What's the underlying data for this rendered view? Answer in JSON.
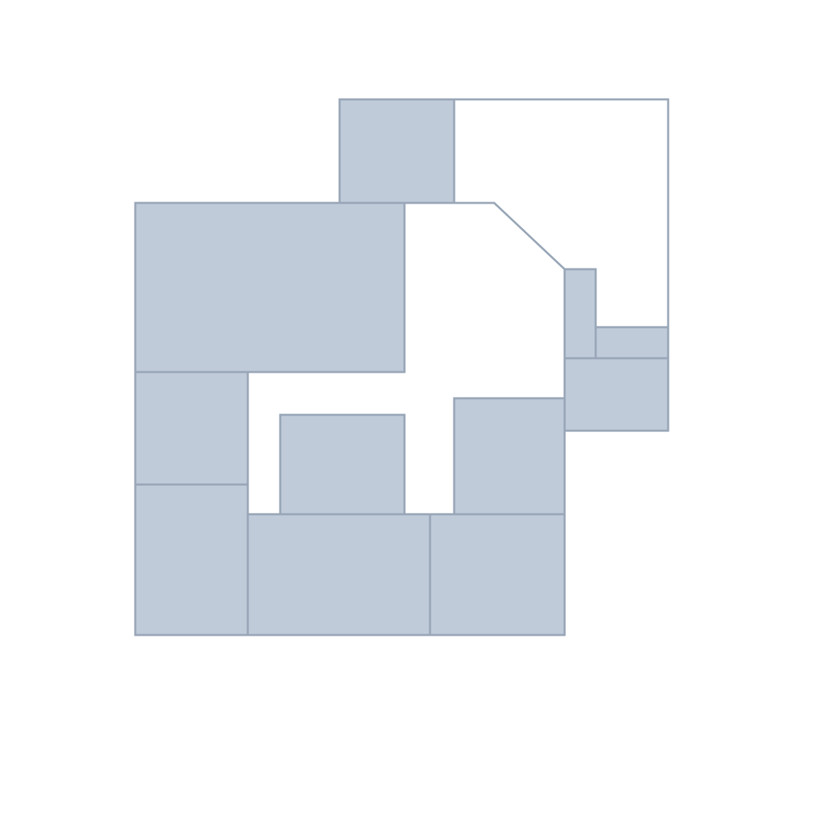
{
  "colors": {
    "background": "#ffffff",
    "room_fill": "#bfcbd9",
    "room_stroke": "#98a6b7",
    "wall_stroke": "#98a6b7"
  }
}
